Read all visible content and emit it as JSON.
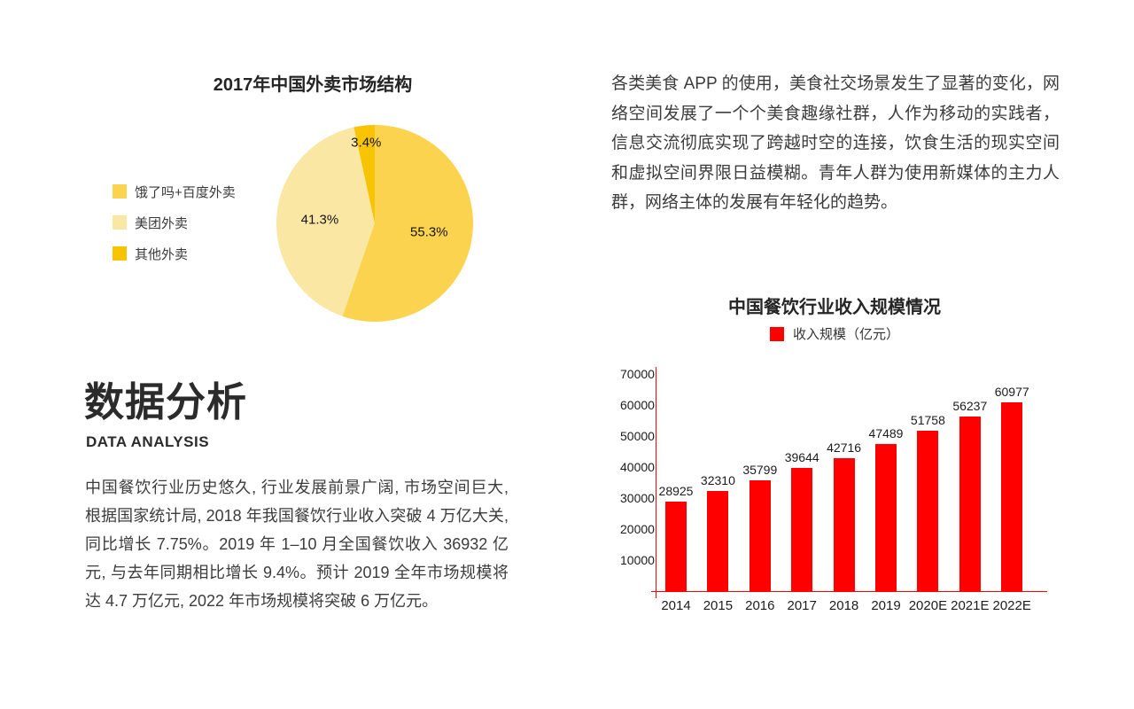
{
  "page": {
    "background": "#ffffff",
    "body_text_color": "#3c3c3c"
  },
  "chart_data": [
    {
      "id": "takeout-market-pie",
      "type": "pie",
      "title": "2017年中国外卖市场结构",
      "labels": [
        "饿了吗+百度外卖",
        "美团外卖",
        "其他外卖"
      ],
      "values": [
        55.3,
        41.3,
        3.4
      ],
      "unit": "%",
      "slice_labels": [
        "55.3%",
        "41.3%",
        "3.4%"
      ],
      "colors": [
        "#FBD34E",
        "#FAE7A3",
        "#F8C301"
      ],
      "start_angle_deg": 0,
      "direction": "clockwise",
      "legend_position": "left",
      "label_color": "#141414"
    },
    {
      "id": "restaurant-revenue-bar",
      "type": "bar",
      "title": "中国餐饮行业收入规模情况",
      "legend_label": "收入规模（亿元）",
      "categories": [
        "2014",
        "2015",
        "2016",
        "2017",
        "2018",
        "2019",
        "2020E",
        "2021E",
        "2022E"
      ],
      "values": [
        28925,
        32310,
        35799,
        39644,
        42716,
        47489,
        51758,
        56237,
        60977
      ],
      "bar_color": "#FF0000",
      "axis_color": "#FF0000",
      "ylim": [
        0,
        70000
      ],
      "y_ticks": [
        10000,
        20000,
        30000,
        40000,
        50000,
        60000,
        70000
      ],
      "grid": false,
      "value_labels": true,
      "legend_position": "top"
    }
  ],
  "analysis": {
    "title": "数据分析",
    "subtitle": "DATA ANALYSIS",
    "paragraph": "中国餐饮行业历史悠久, 行业发展前景广阔, 市场空间巨大, 根据国家统计局, 2018 年我国餐饮行业收入突破 4 万亿大关, 同比增长 7.75%。2019 年 1–10 月全国餐饮收入 36932 亿元, 与去年同期相比增长 9.4%。预计 2019 全年市场规模将达 4.7 万亿元, 2022 年市场规模将突破 6 万亿元。"
  },
  "intro": {
    "paragraph": "各类美食 APP 的使用，美食社交场景发生了显著的变化，网络空间发展了一个个美食趣缘社群，人作为移动的实践者，信息交流彻底实现了跨越时空的连接，饮食生活的现实空间和虚拟空间界限日益模糊。青年人群为使用新媒体的主力人群，网络主体的发展有年轻化的趋势。"
  }
}
